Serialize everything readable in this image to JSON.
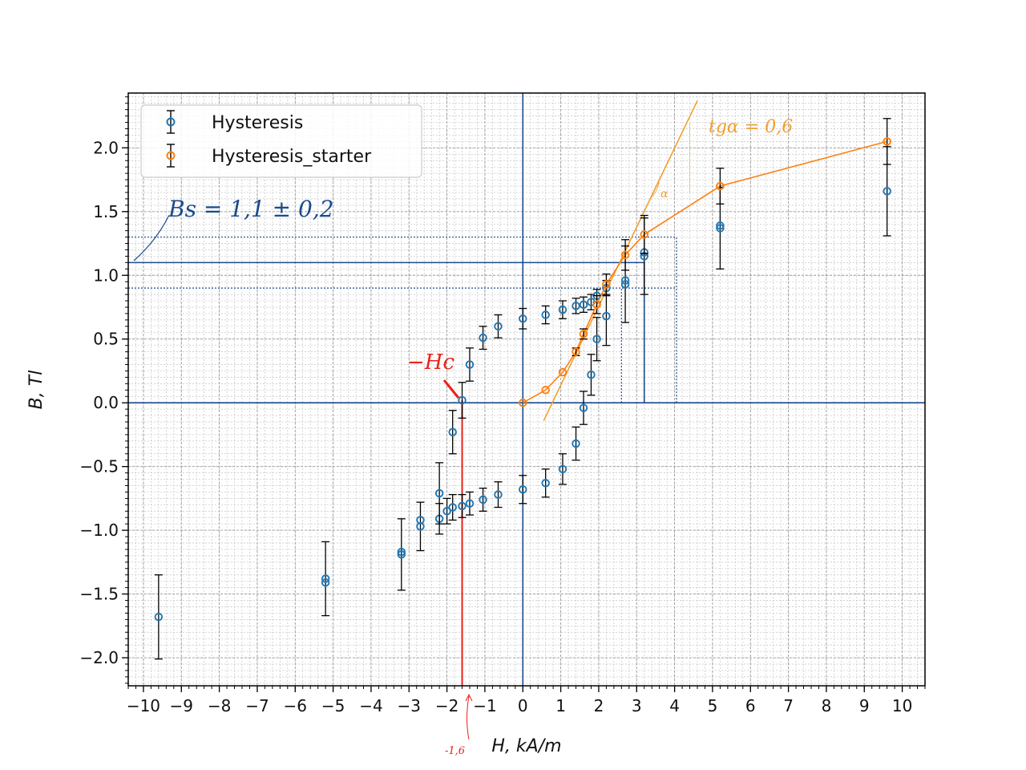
{
  "chart_data": {
    "type": "scatter",
    "title": "",
    "xlabel": "H, kA/m",
    "ylabel": "B, Tl",
    "xlim": [
      -10.4,
      10.6
    ],
    "ylim": [
      -2.22,
      2.43
    ],
    "xticks": [
      -10,
      -9,
      -8,
      -7,
      -6,
      -5,
      -4,
      -3,
      -2,
      -1,
      0,
      1,
      2,
      3,
      4,
      5,
      6,
      7,
      8,
      9,
      10
    ],
    "yticks": [
      -2.0,
      -1.5,
      -1.0,
      -0.5,
      0.0,
      0.5,
      1.0,
      1.5,
      2.0
    ],
    "xtick_labels": [
      "−10",
      "−9",
      "−8",
      "−7",
      "−6",
      "−5",
      "−4",
      "−3",
      "−2",
      "−1",
      "0",
      "1",
      "2",
      "3",
      "4",
      "5",
      "6",
      "7",
      "8",
      "9",
      "10"
    ],
    "ytick_labels": [
      "−2.0",
      "−1.5",
      "−1.0",
      "−0.5",
      "0.0",
      "0.5",
      "1.0",
      "1.5",
      "2.0"
    ],
    "grid": "minor and major, dotted",
    "legend": {
      "placement": "top-left",
      "entries": [
        "Hysteresis",
        "Hysteresis_starter"
      ]
    },
    "series": [
      {
        "name": "Hysteresis",
        "color": "#1f77b4",
        "errorbar_color": "#000000",
        "points": [
          {
            "x": -9.6,
            "y": -1.68,
            "err": 0.33
          },
          {
            "x": -5.2,
            "y": -1.38,
            "err": 0.29
          },
          {
            "x": -5.2,
            "y": -1.41,
            "err": 0.0
          },
          {
            "x": -3.2,
            "y": -1.19,
            "err": 0.28
          },
          {
            "x": -3.2,
            "y": -1.17,
            "err": 0.0
          },
          {
            "x": -2.7,
            "y": -0.97,
            "err": 0.19
          },
          {
            "x": -2.7,
            "y": -0.92,
            "err": 0.0
          },
          {
            "x": -2.2,
            "y": -0.91,
            "err": 0.12
          },
          {
            "x": -2.2,
            "y": -0.71,
            "err": 0.24
          },
          {
            "x": -2.0,
            "y": -0.85,
            "err": 0.1
          },
          {
            "x": -1.85,
            "y": -0.82,
            "err": 0.1
          },
          {
            "x": -1.85,
            "y": -0.23,
            "err": 0.17
          },
          {
            "x": -1.6,
            "y": -0.81,
            "err": 0.09
          },
          {
            "x": -1.6,
            "y": 0.02,
            "err": 0.14
          },
          {
            "x": -1.4,
            "y": -0.79,
            "err": 0.09
          },
          {
            "x": -1.4,
            "y": 0.3,
            "err": 0.13
          },
          {
            "x": -1.05,
            "y": -0.76,
            "err": 0.09
          },
          {
            "x": -1.05,
            "y": 0.51,
            "err": 0.09
          },
          {
            "x": -0.65,
            "y": -0.72,
            "err": 0.1
          },
          {
            "x": -0.65,
            "y": 0.6,
            "err": 0.09
          },
          {
            "x": 0.0,
            "y": -0.68,
            "err": 0.11
          },
          {
            "x": 0.0,
            "y": 0.66,
            "err": 0.08
          },
          {
            "x": 0.6,
            "y": -0.63,
            "err": 0.11
          },
          {
            "x": 0.6,
            "y": 0.69,
            "err": 0.07
          },
          {
            "x": 1.05,
            "y": -0.52,
            "err": 0.12
          },
          {
            "x": 1.05,
            "y": 0.73,
            "err": 0.07
          },
          {
            "x": 1.4,
            "y": -0.32,
            "err": 0.13
          },
          {
            "x": 1.4,
            "y": 0.76,
            "err": 0.06
          },
          {
            "x": 1.6,
            "y": -0.04,
            "err": 0.13
          },
          {
            "x": 1.6,
            "y": 0.77,
            "err": 0.06
          },
          {
            "x": 1.8,
            "y": 0.22,
            "err": 0.16
          },
          {
            "x": 1.8,
            "y": 0.79,
            "err": 0.06
          },
          {
            "x": 1.95,
            "y": 0.5,
            "err": 0.17
          },
          {
            "x": 1.95,
            "y": 0.84,
            "err": 0.05
          },
          {
            "x": 2.2,
            "y": 0.68,
            "err": 0.23
          },
          {
            "x": 2.2,
            "y": 0.9,
            "err": 0.06
          },
          {
            "x": 2.7,
            "y": 0.93,
            "err": 0.3
          },
          {
            "x": 2.7,
            "y": 0.96,
            "err": 0.0
          },
          {
            "x": 3.2,
            "y": 1.15,
            "err": 0.3
          },
          {
            "x": 3.2,
            "y": 1.18,
            "err": 0.0
          },
          {
            "x": 5.2,
            "y": 1.37,
            "err": 0.32
          },
          {
            "x": 5.2,
            "y": 1.39,
            "err": 0.0
          },
          {
            "x": 9.6,
            "y": 1.66,
            "err": 0.35
          }
        ]
      },
      {
        "name": "Hysteresis_starter",
        "color": "#ff7f0e",
        "errorbar_color": "#000000",
        "points": [
          {
            "x": 0.0,
            "y": 0.0,
            "err": 0.0
          },
          {
            "x": 0.6,
            "y": 0.1,
            "err": 0.0
          },
          {
            "x": 1.05,
            "y": 0.24,
            "err": 0.0
          },
          {
            "x": 1.4,
            "y": 0.4,
            "err": 0.03
          },
          {
            "x": 1.6,
            "y": 0.54,
            "err": 0.04
          },
          {
            "x": 1.95,
            "y": 0.77,
            "err": 0.07
          },
          {
            "x": 2.2,
            "y": 0.93,
            "err": 0.08
          },
          {
            "x": 2.7,
            "y": 1.16,
            "err": 0.12
          },
          {
            "x": 3.2,
            "y": 1.32,
            "err": 0.15
          },
          {
            "x": 5.2,
            "y": 1.7,
            "err": 0.14
          },
          {
            "x": 9.6,
            "y": 2.05,
            "err": 0.18
          }
        ]
      }
    ],
    "annotations": {
      "bs_text": "Bs = 1,1 ± 0,2",
      "bs_value": 1.1,
      "bs_lower": 0.9,
      "bs_upper": 1.3,
      "hc_text": "−Hc",
      "hc_value": -1.6,
      "hc_axis_label": "-1,6",
      "tangent_text": "tgα = 0,6",
      "alpha_text": "α",
      "hs_lines": [
        2.6,
        3.2,
        4.05
      ],
      "colors": {
        "blue_pen": "#1a4a8c",
        "red_pen": "#e8221b",
        "orange_pen": "#f0a030"
      }
    }
  }
}
